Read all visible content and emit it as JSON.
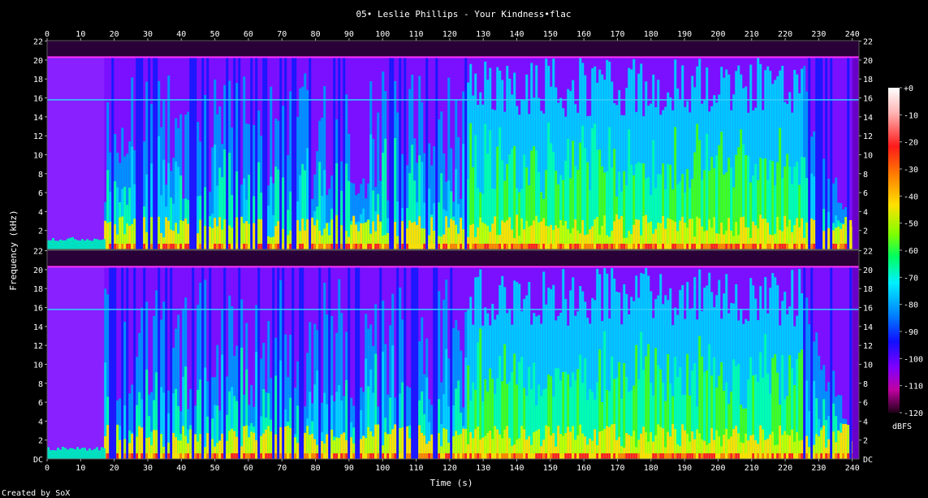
{
  "chart_data": {
    "type": "heatmap",
    "title": "05• Leslie Phillips - Your Kindness•flac",
    "xlabel": "Time (s)",
    "ylabel": "Frequency (kHz)",
    "footer": "Created by SoX",
    "x_ticks": [
      0,
      10,
      20,
      30,
      40,
      50,
      60,
      70,
      80,
      90,
      100,
      110,
      120,
      130,
      140,
      150,
      160,
      170,
      180,
      190,
      200,
      210,
      220,
      230,
      240
    ],
    "xlim": [
      0,
      242
    ],
    "ylim_khz": [
      0,
      22.05
    ],
    "y_ticks": [
      {
        "v": 22,
        "label": "22"
      },
      {
        "v": 20,
        "label": "20"
      },
      {
        "v": 18,
        "label": "18"
      },
      {
        "v": 16,
        "label": "16"
      },
      {
        "v": 14,
        "label": "14"
      },
      {
        "v": 12,
        "label": "12"
      },
      {
        "v": 10,
        "label": "10"
      },
      {
        "v": 8,
        "label": "8"
      },
      {
        "v": 6,
        "label": "6"
      },
      {
        "v": 4,
        "label": "4"
      },
      {
        "v": 2,
        "label": "2"
      }
    ],
    "y_bottom_label": "DC",
    "channels": 2,
    "colorbar": {
      "unit": "dBFS",
      "labels": [
        "+0",
        "-10",
        "-20",
        "-30",
        "-40",
        "-50",
        "-60",
        "-70",
        "-80",
        "-90",
        "-100",
        "-110",
        "-120"
      ],
      "range": [
        0,
        -120
      ]
    },
    "features": {
      "lowpass_cutoff_khz": 20.3,
      "constant_tone_khz": 15.8,
      "quiet_intro_end_s": 17,
      "dense_section_s": [
        125,
        225
      ],
      "fade_out_end_s": 240
    }
  }
}
